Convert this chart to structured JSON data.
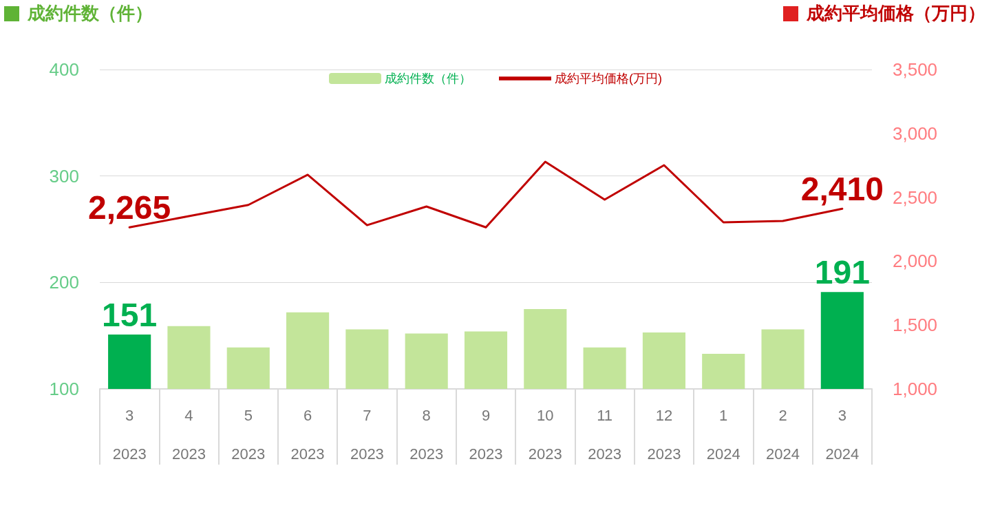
{
  "chart_data": {
    "type": "bar",
    "ylabel": "成約件数（件）",
    "y2label": "成約平均価格（万円）",
    "categories": [
      "3\n2023",
      "4\n2023",
      "5\n2023",
      "6\n2023",
      "7\n2023",
      "8\n2023",
      "9\n2023",
      "10\n2023",
      "11\n2023",
      "12\n2023",
      "1\n2024",
      "2\n2024",
      "3\n2024"
    ],
    "series": [
      {
        "name": "成約件数（件）",
        "color": "#c3e59a",
        "colors": [
          "#00b050",
          "#c3e59a",
          "#c3e59a",
          "#c3e59a",
          "#c3e59a",
          "#c3e59a",
          "#c3e59a",
          "#c3e59a",
          "#c3e59a",
          "#c3e59a",
          "#c3e59a",
          "#c3e59a",
          "#00b050"
        ],
        "values": [
          151,
          159,
          139,
          172,
          156,
          152,
          154,
          175,
          139,
          153,
          133,
          156,
          191
        ],
        "value_labels": [
          "151",
          null,
          null,
          null,
          null,
          null,
          null,
          null,
          null,
          null,
          null,
          null,
          "191"
        ]
      },
      {
        "name": "成約平均価格(万円)",
        "type": "line",
        "axis": "y2",
        "color": "#c00000",
        "values": [
          2265,
          2352,
          2440,
          2676,
          2282,
          2428,
          2265,
          2778,
          2482,
          2751,
          2304,
          2315,
          2410
        ],
        "value_labels": [
          "2,265",
          null,
          null,
          null,
          null,
          null,
          null,
          null,
          null,
          null,
          null,
          null,
          "2,410"
        ]
      }
    ],
    "ylim": [
      100,
      400
    ],
    "yticks": [
      100,
      200,
      300,
      400
    ],
    "y2lim": [
      1000,
      3500
    ],
    "y2ticks": [
      {
        "value": 1000,
        "label": "1,000"
      },
      {
        "value": 1500,
        "label": "1,500"
      },
      {
        "value": 2000,
        "label": "2,000"
      },
      {
        "value": 2500,
        "label": "2,500"
      },
      {
        "value": 3000,
        "label": "3,000"
      },
      {
        "value": 3500,
        "label": "3,500"
      }
    ],
    "grid": "y",
    "legend": "top",
    "marker": "none"
  }
}
